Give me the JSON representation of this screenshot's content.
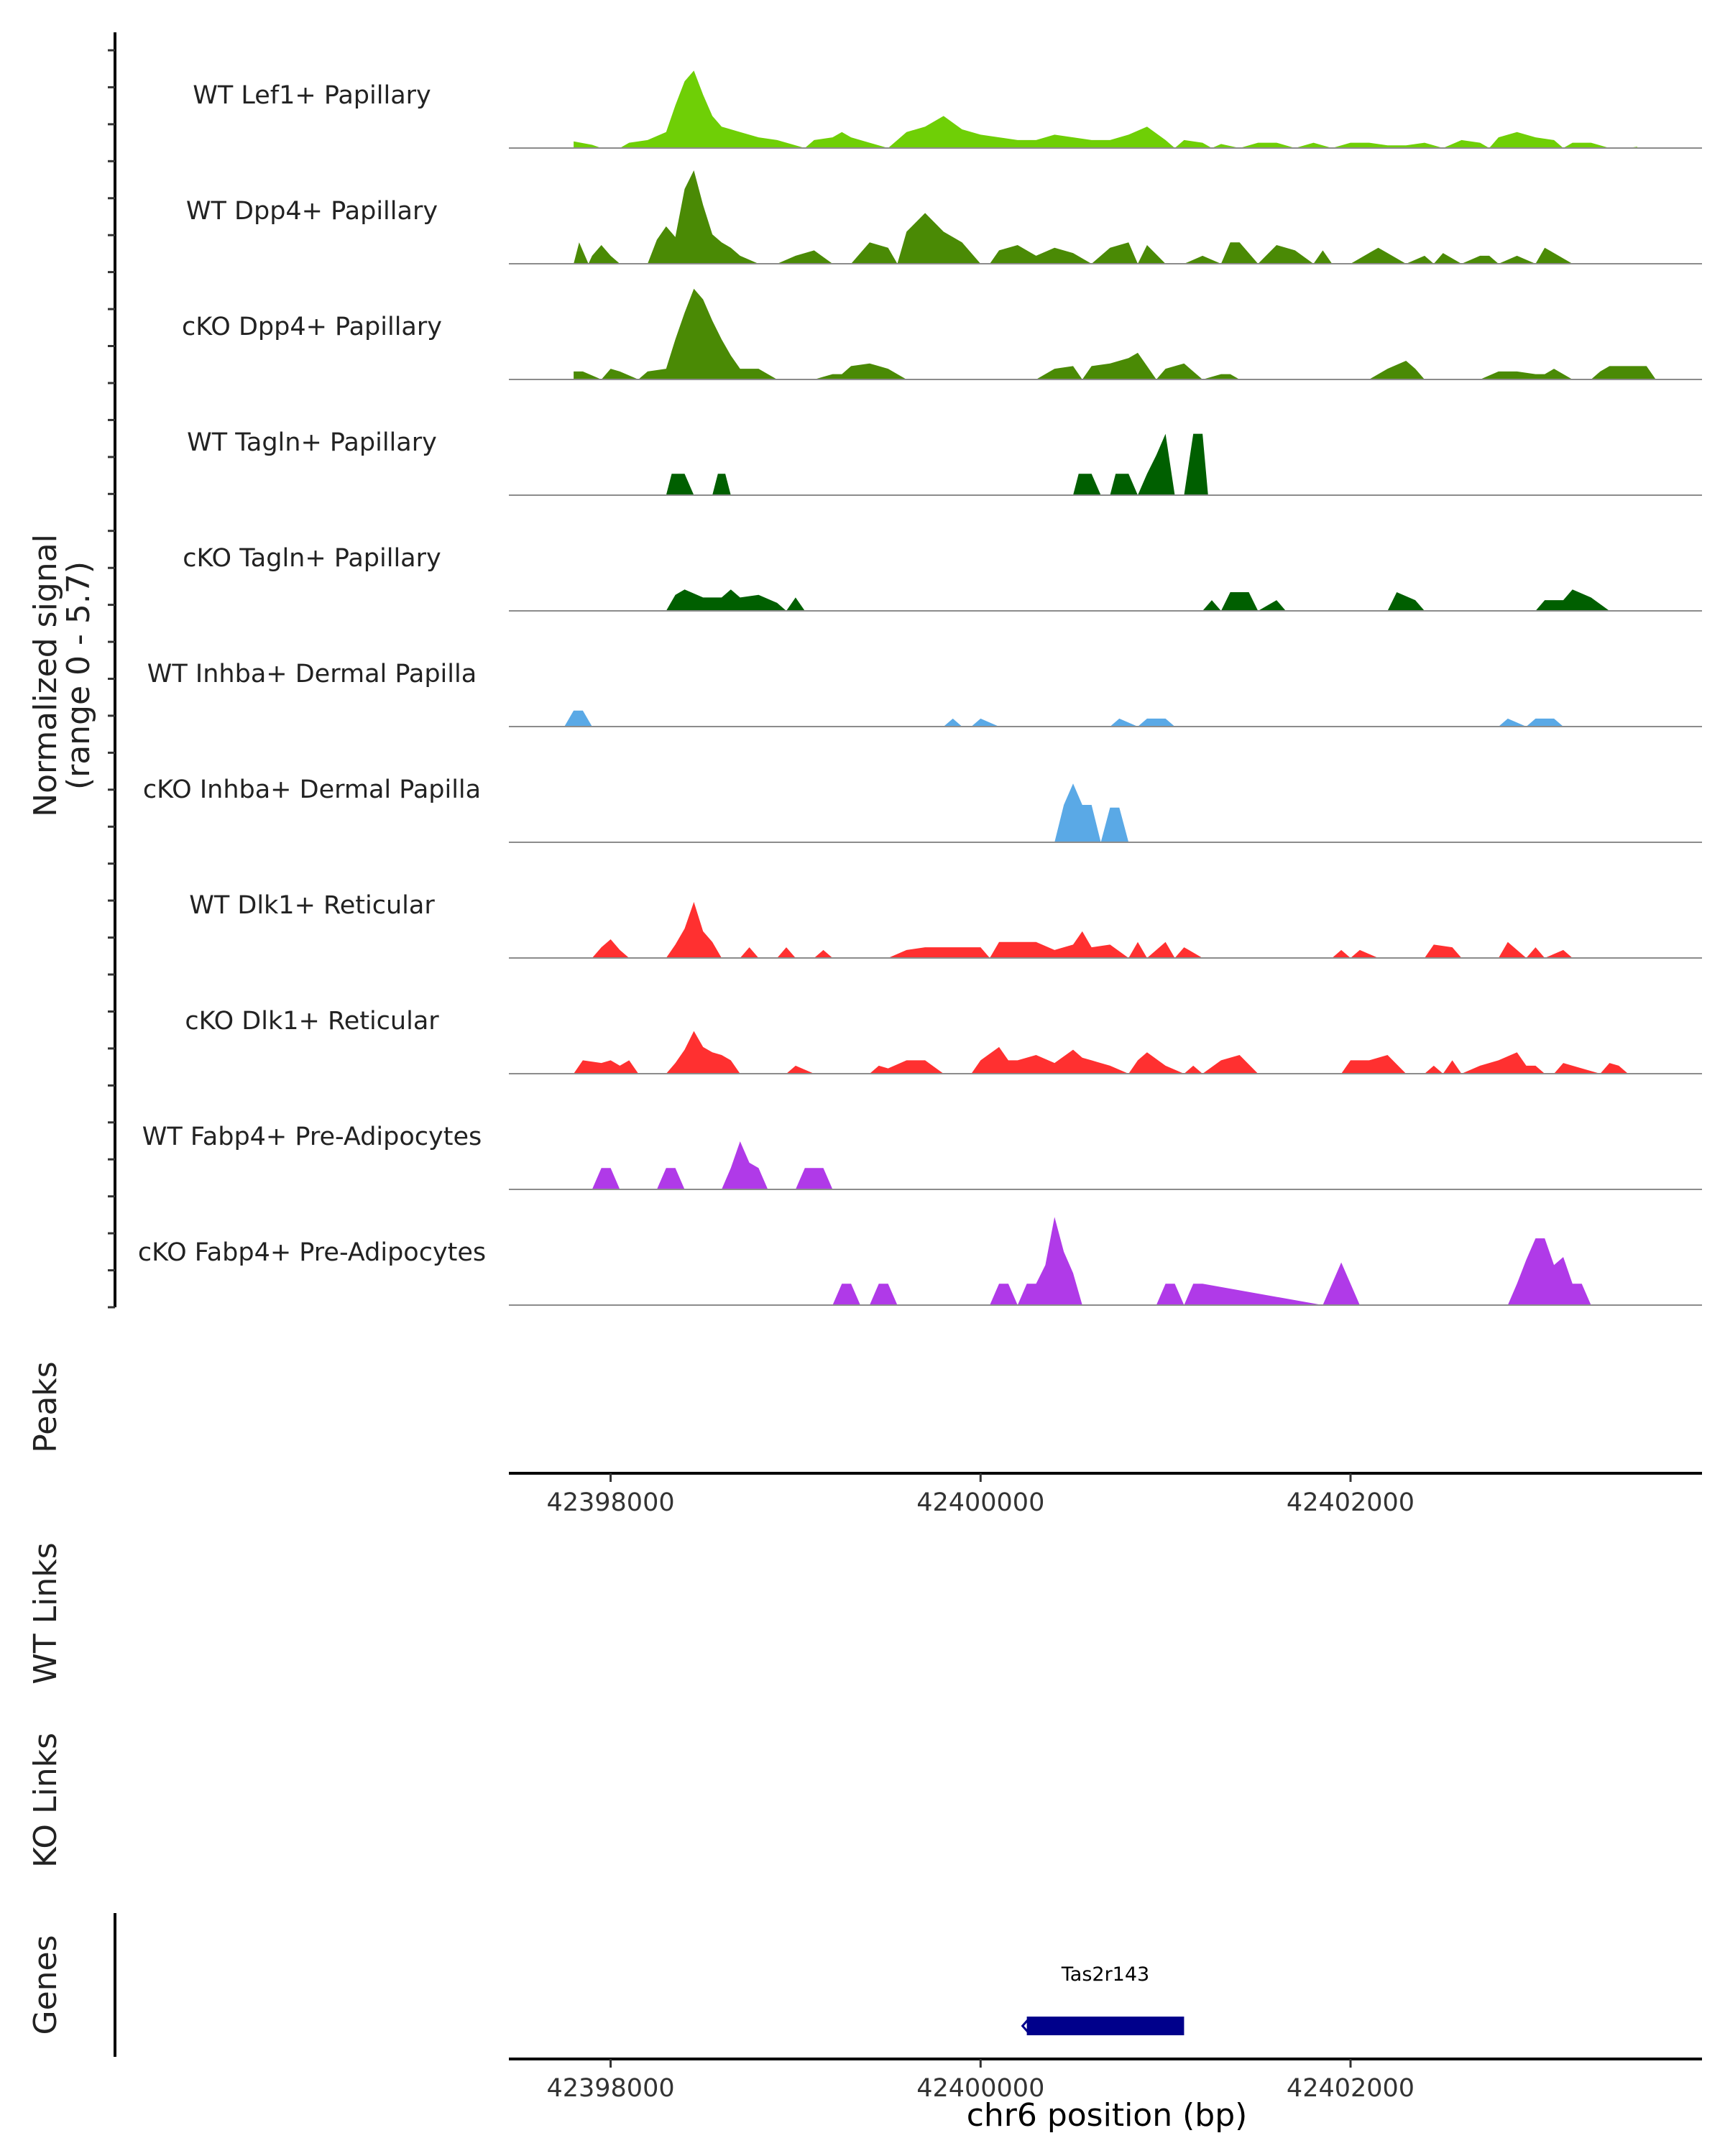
{
  "chart_data": {
    "type": "area",
    "title": "",
    "chromosome": "chr6",
    "xlabel": "chr6 position (bp)",
    "ylabel_line1": "Normalized signal",
    "ylabel_line2": "(range 0 - 5.7)",
    "xlim": [
      42397450,
      42403900
    ],
    "ylim": [
      0,
      5.7
    ],
    "x_ticks": [
      42398000,
      42400000,
      42402000
    ],
    "x_tick_labels": [
      "42398000",
      "42400000",
      "42402000"
    ],
    "side_titles": {
      "peaks": "Peaks",
      "wt_links": "WT Links",
      "ko_links": "KO Links",
      "genes": "Genes"
    },
    "series": [
      {
        "name": "WT Lef1+ Papillary",
        "color": "#6fcf06",
        "x": [
          42397800,
          42397900,
          42397950,
          42398000,
          42398050,
          42398100,
          42398200,
          42398300,
          42398350,
          42398400,
          42398450,
          42398500,
          42398550,
          42398600,
          42398700,
          42398800,
          42398900,
          42399000,
          42399050,
          42399100,
          42399200,
          42399250,
          42399300,
          42399400,
          42399500,
          42399550,
          42399600,
          42399700,
          42399800,
          42399900,
          42400000,
          42400100,
          42400200,
          42400300,
          42400400,
          42400500,
          42400600,
          42400700,
          42400800,
          42400900,
          42401000,
          42401050,
          42401100,
          42401200,
          42401250,
          42401300,
          42401400,
          42401500,
          42401600,
          42401700,
          42401800,
          42401900,
          42402000,
          42402100,
          42402200,
          42402300,
          42402400,
          42402450,
          42402500,
          42402600,
          42402700,
          42402750,
          42402800,
          42402900,
          42403000,
          42403100,
          42403150,
          42403200,
          42403300,
          42403350,
          42403400,
          42403500,
          42403550
        ],
        "y": [
          0.25,
          0.12,
          0,
          0,
          0,
          0.2,
          0.3,
          0.6,
          1.6,
          2.5,
          2.9,
          2.0,
          1.2,
          0.8,
          0.6,
          0.4,
          0.3,
          0.1,
          0,
          0.3,
          0.4,
          0.6,
          0.4,
          0.2,
          0,
          0.3,
          0.6,
          0.8,
          1.2,
          0.7,
          0.5,
          0.4,
          0.3,
          0.3,
          0.5,
          0.4,
          0.3,
          0.3,
          0.5,
          0.8,
          0.3,
          0,
          0.3,
          0.2,
          0,
          0.15,
          0,
          0.2,
          0.2,
          0,
          0.2,
          0,
          0.2,
          0.2,
          0.1,
          0.1,
          0.2,
          0.1,
          0,
          0.3,
          0.2,
          0,
          0.4,
          0.6,
          0.4,
          0.3,
          0,
          0.2,
          0.2,
          0.1,
          0,
          0,
          0.05
        ]
      },
      {
        "name": "WT Dpp4+ Papillary",
        "color": "#4a8a05",
        "x": [
          42397800,
          42397830,
          42397880,
          42397900,
          42397950,
          42398000,
          42398050,
          42398200,
          42398250,
          42398300,
          42398350,
          42398400,
          42398450,
          42398500,
          42398550,
          42398600,
          42398650,
          42398700,
          42398800,
          42398900,
          42399000,
          42399100,
          42399200,
          42399300,
          42399400,
          42399500,
          42399550,
          42399600,
          42399700,
          42399800,
          42399900,
          42400000,
          42400050,
          42400100,
          42400200,
          42400300,
          42400400,
          42400500,
          42400600,
          42400700,
          42400800,
          42400850,
          42400900,
          42401000,
          42401100,
          42401200,
          42401300,
          42401350,
          42401400,
          42401500,
          42401600,
          42401700,
          42401800,
          42401850,
          42401900,
          42402000,
          42402100,
          42402150,
          42402200,
          42402300,
          42402400,
          42402450,
          42402500,
          42402600,
          42402700,
          42402750,
          42402800,
          42402900,
          42403000,
          42403050,
          42403100,
          42403200
        ],
        "y": [
          0,
          0.8,
          0,
          0.3,
          0.7,
          0.3,
          0,
          0,
          0.9,
          1.4,
          1.0,
          2.8,
          3.5,
          2.2,
          1.1,
          0.8,
          0.6,
          0.3,
          0,
          0,
          0.3,
          0.5,
          0,
          0,
          0.8,
          0.6,
          0,
          1.2,
          1.9,
          1.2,
          0.8,
          0,
          0,
          0.5,
          0.7,
          0.3,
          0.6,
          0.4,
          0,
          0.6,
          0.8,
          0,
          0.7,
          0,
          0,
          0.3,
          0,
          0.8,
          0.8,
          0,
          0.7,
          0.5,
          0,
          0.5,
          0,
          0,
          0.4,
          0.6,
          0.4,
          0,
          0.3,
          0,
          0.4,
          0,
          0.3,
          0.3,
          0,
          0.3,
          0,
          0.6,
          0.4,
          0
        ]
      },
      {
        "name": "cKO Dpp4+ Papillary",
        "color": "#4a8a05",
        "x": [
          42397800,
          42397850,
          42397950,
          42398000,
          42398050,
          42398150,
          42398200,
          42398300,
          42398350,
          42398400,
          42398450,
          42398500,
          42398550,
          42398600,
          42398650,
          42398700,
          42398800,
          42398900,
          42399000,
          42399100,
          42399200,
          42399250,
          42399300,
          42399400,
          42399500,
          42399600,
          42399700,
          42399800,
          42399900,
          42400000,
          42400100,
          42400200,
          42400300,
          42400400,
          42400500,
          42400550,
          42400600,
          42400700,
          42400800,
          42400850,
          42400900,
          42400950,
          42401000,
          42401100,
          42401150,
          42401200,
          42401300,
          42401350,
          42401400,
          42401500,
          42401600,
          42401700,
          42401800,
          42401900,
          42402000,
          42402100,
          42402200,
          42402300,
          42402350,
          42402400,
          42402500,
          42402600,
          42402700,
          42402800,
          42402900,
          42403000,
          42403050,
          42403100,
          42403200,
          42403300,
          42403350,
          42403400,
          42403500,
          42403600,
          42403650
        ],
        "y": [
          0.3,
          0.3,
          0,
          0.4,
          0.3,
          0,
          0.3,
          0.4,
          1.5,
          2.5,
          3.4,
          3.0,
          2.2,
          1.5,
          0.9,
          0.4,
          0.4,
          0,
          0,
          0,
          0.2,
          0.2,
          0.5,
          0.6,
          0.4,
          0,
          0,
          0,
          0,
          0,
          0,
          0,
          0,
          0.4,
          0.5,
          0,
          0.5,
          0.6,
          0.8,
          1.0,
          0.5,
          0,
          0.4,
          0.6,
          0.3,
          0,
          0.2,
          0.2,
          0,
          0,
          0,
          0,
          0,
          0,
          0,
          0,
          0.4,
          0.7,
          0.4,
          0,
          0,
          0,
          0,
          0.3,
          0.3,
          0.2,
          0.2,
          0.4,
          0,
          0,
          0.3,
          0.5,
          0.5,
          0.5,
          0
        ]
      },
      {
        "name": "WT Tagln+ Papillary",
        "color": "#005f00",
        "x": [
          42398300,
          42398330,
          42398400,
          42398450,
          42398550,
          42398580,
          42398620,
          42398650,
          42400500,
          42400530,
          42400600,
          42400650,
          42400700,
          42400730,
          42400800,
          42400850,
          42400900,
          42400950,
          42401000,
          42401050,
          42401100,
          42401150,
          42401200,
          42401230,
          42401300,
          42401350,
          42401400
        ],
        "y": [
          0,
          0.8,
          0.8,
          0,
          0,
          0.8,
          0.8,
          0,
          0,
          0.8,
          0.8,
          0,
          0,
          0.8,
          0.8,
          0,
          0.8,
          1.5,
          2.3,
          0,
          0,
          2.3,
          2.3,
          0,
          0,
          0,
          0
        ]
      },
      {
        "name": "cKO Tagln+ Papillary",
        "color": "#005f00",
        "x": [
          42398300,
          42398350,
          42398400,
          42398500,
          42398600,
          42398650,
          42398700,
          42398800,
          42398900,
          42398950,
          42399000,
          42399050,
          42401200,
          42401250,
          42401300,
          42401350,
          42401450,
          42401500,
          42401600,
          42401650,
          42401700,
          42401800,
          42402200,
          42402250,
          42402350,
          42402400,
          42403000,
          42403050,
          42403150,
          42403200,
          42403300,
          42403400
        ],
        "y": [
          0,
          0.6,
          0.8,
          0.5,
          0.5,
          0.8,
          0.5,
          0.6,
          0.3,
          0,
          0.5,
          0,
          0,
          0.4,
          0,
          0.7,
          0.7,
          0,
          0.4,
          0,
          0,
          0,
          0,
          0.7,
          0.4,
          0,
          0,
          0.4,
          0.4,
          0.8,
          0.5,
          0
        ]
      },
      {
        "name": "WT Inhba+ Dermal Papilla",
        "color": "#5aa9e6",
        "x": [
          42397750,
          42397800,
          42397850,
          42397900,
          42399800,
          42399850,
          42399900,
          42399950,
          42400000,
          42400100,
          42400700,
          42400750,
          42400850,
          42400900,
          42401000,
          42401050,
          42402800,
          42402850,
          42402950,
          42403000,
          42403100,
          42403150
        ],
        "y": [
          0,
          0.6,
          0.6,
          0,
          0,
          0.3,
          0,
          0,
          0.3,
          0,
          0,
          0.3,
          0,
          0.3,
          0.3,
          0,
          0,
          0.3,
          0,
          0.3,
          0.3,
          0
        ]
      },
      {
        "name": "cKO Inhba+ Dermal Papilla",
        "color": "#5aa9e6",
        "x": [
          42400400,
          42400450,
          42400500,
          42400550,
          42400600,
          42400650,
          42400700,
          42400750,
          42400800
        ],
        "y": [
          0,
          1.4,
          2.2,
          1.4,
          1.4,
          0,
          1.3,
          1.3,
          0
        ]
      },
      {
        "name": "WT Dlk1+ Reticular",
        "color": "#ff3030",
        "x": [
          42397900,
          42397950,
          42398000,
          42398050,
          42398100,
          42398300,
          42398350,
          42398400,
          42398450,
          42398500,
          42398550,
          42398600,
          42398700,
          42398750,
          42398800,
          42398900,
          42398950,
          42399000,
          42399100,
          42399150,
          42399200,
          42399500,
          42399600,
          42399700,
          42399800,
          42399900,
          42400000,
          42400050,
          42400100,
          42400200,
          42400300,
          42400400,
          42400500,
          42400550,
          42400600,
          42400700,
          42400800,
          42400850,
          42400900,
          42401000,
          42401050,
          42401100,
          42401200,
          42401300,
          42401900,
          42401950,
          42402000,
          42402050,
          42402150,
          42402400,
          42402450,
          42402550,
          42402600,
          42402800,
          42402850,
          42402950,
          42403000,
          42403050,
          42403150,
          42403200
        ],
        "y": [
          0,
          0.4,
          0.7,
          0.3,
          0,
          0,
          0.5,
          1.1,
          2.1,
          1.0,
          0.6,
          0,
          0,
          0.4,
          0,
          0,
          0.4,
          0,
          0,
          0.3,
          0,
          0,
          0.3,
          0.4,
          0.4,
          0.4,
          0.4,
          0,
          0.6,
          0.6,
          0.6,
          0.3,
          0.5,
          1.0,
          0.4,
          0.5,
          0,
          0.6,
          0,
          0.6,
          0,
          0.4,
          0,
          0,
          0,
          0.3,
          0,
          0.3,
          0,
          0,
          0.5,
          0.4,
          0,
          0,
          0.6,
          0,
          0.4,
          0,
          0.3,
          0
        ]
      },
      {
        "name": "cKO Dlk1+ Reticular",
        "color": "#ff3030",
        "x": [
          42397800,
          42397850,
          42397950,
          42398000,
          42398050,
          42398100,
          42398150,
          42398300,
          42398350,
          42398400,
          42398450,
          42398500,
          42398550,
          42398600,
          42398650,
          42398700,
          42398950,
          42399000,
          42399100,
          42399400,
          42399450,
          42399500,
          42399600,
          42399700,
          42399800,
          42399950,
          42400000,
          42400100,
          42400150,
          42400200,
          42400300,
          42400400,
          42400500,
          42400550,
          42400600,
          42400700,
          42400800,
          42400850,
          42400900,
          42401000,
          42401100,
          42401150,
          42401200,
          42401300,
          42401400,
          42401500,
          42401550,
          42401600,
          42401950,
          42402000,
          42402100,
          42402200,
          42402300,
          42402400,
          42402450,
          42402500,
          42402550,
          42402600,
          42402700,
          42402800,
          42402900,
          42402950,
          42403000,
          42403050,
          42403100,
          42403150,
          42403200,
          42403350,
          42403400,
          42403450,
          42403500
        ],
        "y": [
          0,
          0.5,
          0.4,
          0.5,
          0.3,
          0.5,
          0,
          0,
          0.4,
          0.9,
          1.6,
          1.0,
          0.8,
          0.7,
          0.5,
          0,
          0,
          0.3,
          0,
          0,
          0.3,
          0.2,
          0.5,
          0.5,
          0,
          0,
          0.5,
          1.0,
          0.5,
          0.5,
          0.7,
          0.4,
          0.9,
          0.6,
          0.5,
          0.3,
          0,
          0.5,
          0.8,
          0.3,
          0,
          0.3,
          0,
          0.5,
          0.7,
          0,
          0,
          0,
          0,
          0.5,
          0.5,
          0.7,
          0,
          0,
          0.3,
          0,
          0.5,
          0,
          0.3,
          0.5,
          0.8,
          0.3,
          0.3,
          0,
          0,
          0.4,
          0.3,
          0,
          0.4,
          0.3,
          0
        ]
      },
      {
        "name": "WT Fabp4+ Pre-Adipocytes",
        "color": "#b03ae8",
        "x": [
          42397900,
          42397950,
          42398000,
          42398050,
          42398250,
          42398300,
          42398350,
          42398400,
          42398600,
          42398650,
          42398700,
          42398750,
          42398800,
          42398850,
          42399000,
          42399050,
          42399150,
          42399200
        ],
        "y": [
          0,
          0.8,
          0.8,
          0,
          0,
          0.8,
          0.8,
          0,
          0,
          0.8,
          1.8,
          1.0,
          0.8,
          0,
          0,
          0.8,
          0.8,
          0
        ]
      },
      {
        "name": "cKO Fabp4+ Pre-Adipocytes",
        "color": "#b03ae8",
        "x": [
          42399200,
          42399250,
          42399300,
          42399350,
          42399400,
          42399450,
          42399500,
          42399550,
          42400050,
          42400100,
          42400150,
          42400200,
          42400250,
          42400300,
          42400350,
          42400400,
          42400450,
          42400500,
          42400550,
          42400950,
          42401000,
          42401050,
          42401100,
          42401150,
          42401200,
          42401850,
          42401900,
          42401950,
          42402000,
          42402050,
          42402850,
          42402900,
          42402950,
          42403000,
          42403050,
          42403100,
          42403150,
          42403200,
          42403250,
          42403300
        ],
        "y": [
          0,
          0.8,
          0.8,
          0,
          0,
          0.8,
          0.8,
          0,
          0,
          0.8,
          0.8,
          0,
          0.8,
          0.8,
          1.5,
          3.3,
          2.0,
          1.2,
          0,
          0,
          0.8,
          0.8,
          0,
          0.8,
          0.8,
          0,
          0.8,
          1.6,
          0.8,
          0,
          0,
          0.8,
          1.7,
          2.5,
          2.5,
          1.5,
          1.8,
          0.8,
          0.8,
          0
        ]
      }
    ],
    "genes": [
      {
        "name": "Tas2r143",
        "start": 42400250,
        "end": 42401100,
        "strand": "-",
        "color": "#00008b"
      }
    ]
  }
}
